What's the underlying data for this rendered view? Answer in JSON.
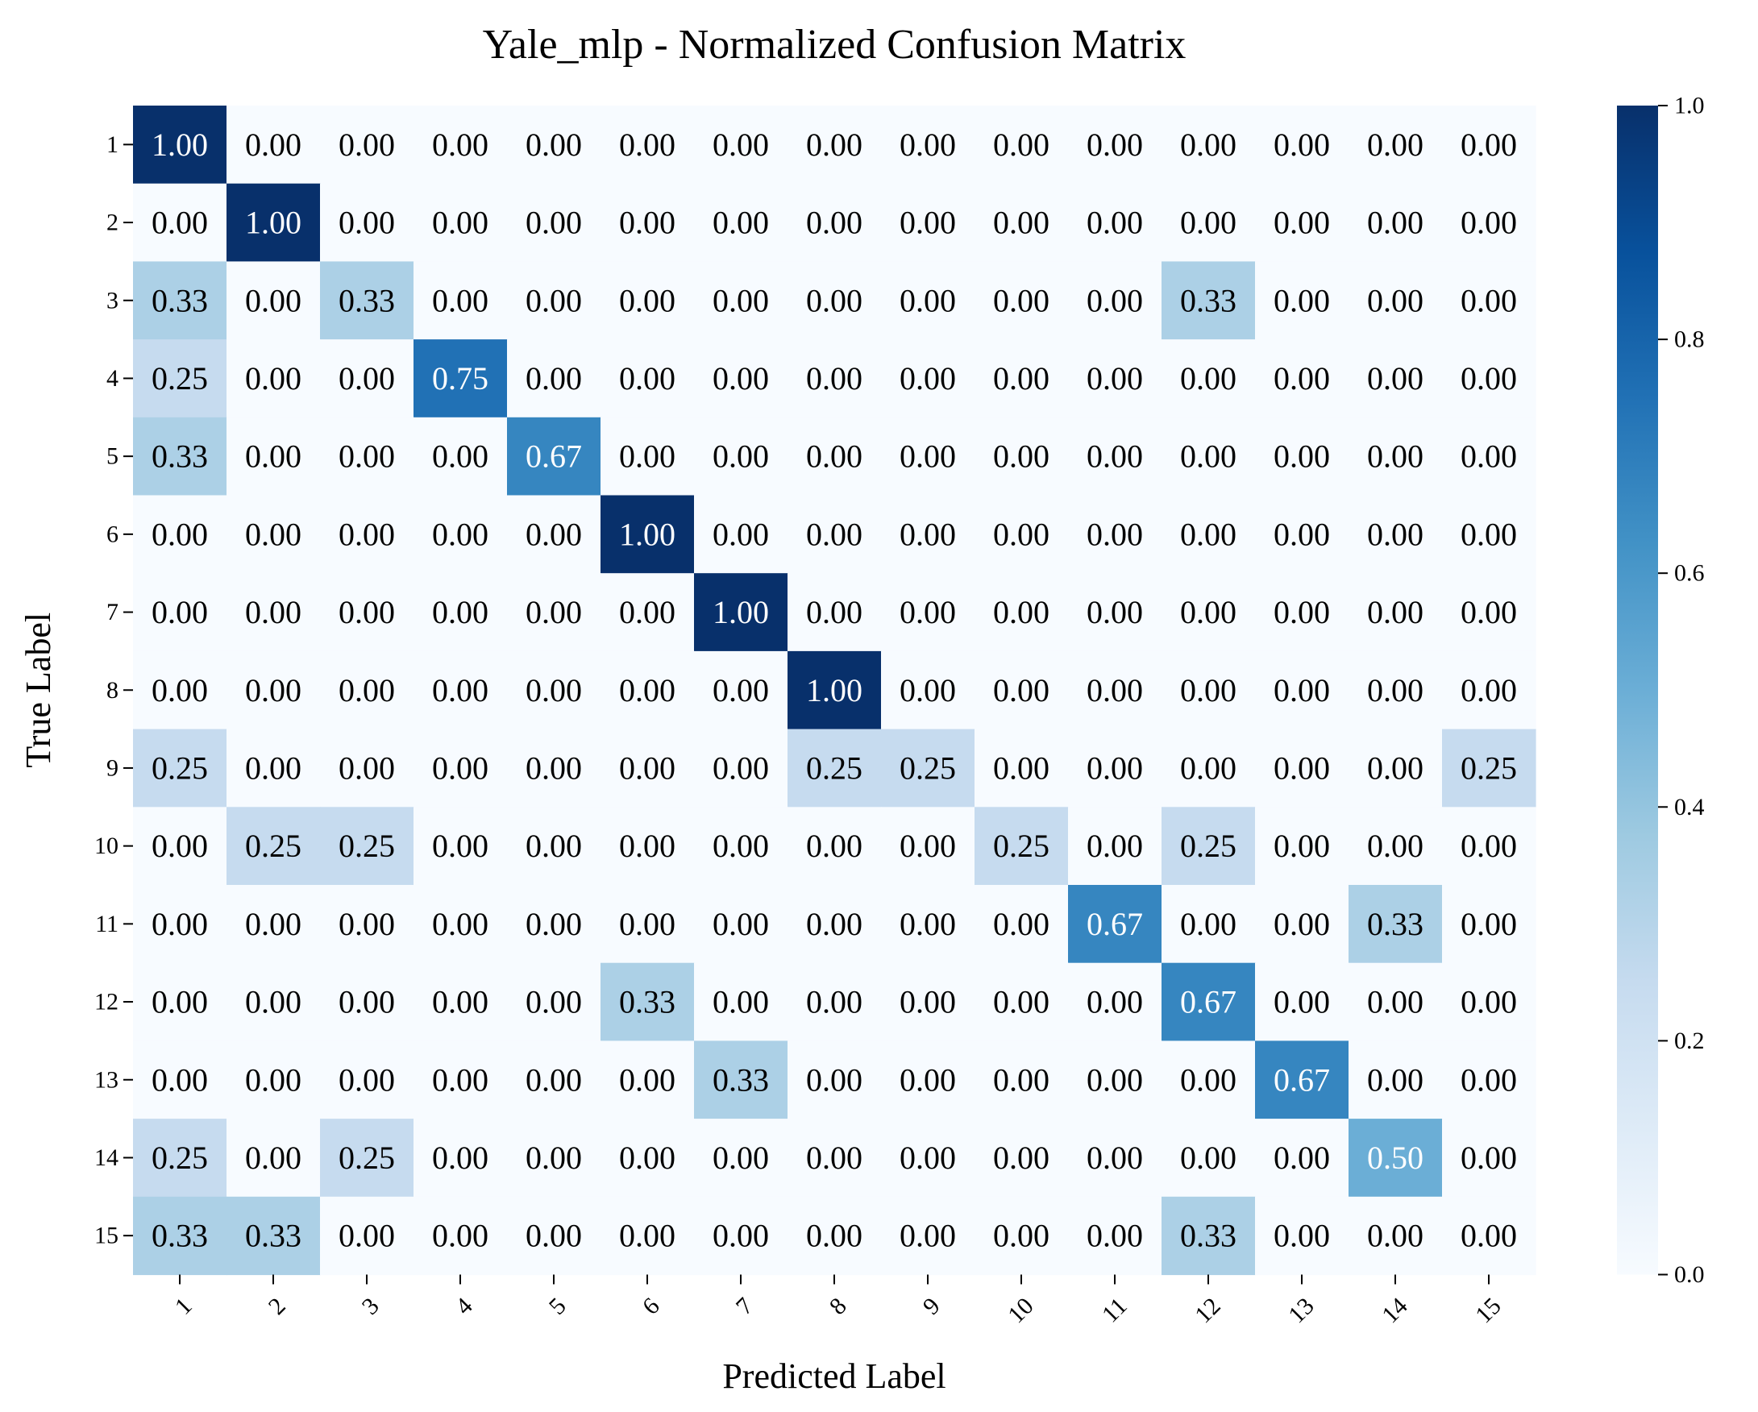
{
  "chart_data": {
    "type": "heatmap",
    "title": "Yale_mlp - Normalized Confusion Matrix",
    "xlabel": "Predicted Label",
    "ylabel": "True Label",
    "x_categories": [
      "1",
      "2",
      "3",
      "4",
      "5",
      "6",
      "7",
      "8",
      "9",
      "10",
      "11",
      "12",
      "13",
      "14",
      "15"
    ],
    "y_categories": [
      "1",
      "2",
      "3",
      "4",
      "5",
      "6",
      "7",
      "8",
      "9",
      "10",
      "11",
      "12",
      "13",
      "14",
      "15"
    ],
    "values": [
      [
        1.0,
        0.0,
        0.0,
        0.0,
        0.0,
        0.0,
        0.0,
        0.0,
        0.0,
        0.0,
        0.0,
        0.0,
        0.0,
        0.0,
        0.0
      ],
      [
        0.0,
        1.0,
        0.0,
        0.0,
        0.0,
        0.0,
        0.0,
        0.0,
        0.0,
        0.0,
        0.0,
        0.0,
        0.0,
        0.0,
        0.0
      ],
      [
        0.33,
        0.0,
        0.33,
        0.0,
        0.0,
        0.0,
        0.0,
        0.0,
        0.0,
        0.0,
        0.0,
        0.33,
        0.0,
        0.0,
        0.0
      ],
      [
        0.25,
        0.0,
        0.0,
        0.75,
        0.0,
        0.0,
        0.0,
        0.0,
        0.0,
        0.0,
        0.0,
        0.0,
        0.0,
        0.0,
        0.0
      ],
      [
        0.33,
        0.0,
        0.0,
        0.0,
        0.67,
        0.0,
        0.0,
        0.0,
        0.0,
        0.0,
        0.0,
        0.0,
        0.0,
        0.0,
        0.0
      ],
      [
        0.0,
        0.0,
        0.0,
        0.0,
        0.0,
        1.0,
        0.0,
        0.0,
        0.0,
        0.0,
        0.0,
        0.0,
        0.0,
        0.0,
        0.0
      ],
      [
        0.0,
        0.0,
        0.0,
        0.0,
        0.0,
        0.0,
        1.0,
        0.0,
        0.0,
        0.0,
        0.0,
        0.0,
        0.0,
        0.0,
        0.0
      ],
      [
        0.0,
        0.0,
        0.0,
        0.0,
        0.0,
        0.0,
        0.0,
        1.0,
        0.0,
        0.0,
        0.0,
        0.0,
        0.0,
        0.0,
        0.0
      ],
      [
        0.25,
        0.0,
        0.0,
        0.0,
        0.0,
        0.0,
        0.0,
        0.25,
        0.25,
        0.0,
        0.0,
        0.0,
        0.0,
        0.0,
        0.25
      ],
      [
        0.0,
        0.25,
        0.25,
        0.0,
        0.0,
        0.0,
        0.0,
        0.0,
        0.0,
        0.25,
        0.0,
        0.25,
        0.0,
        0.0,
        0.0
      ],
      [
        0.0,
        0.0,
        0.0,
        0.0,
        0.0,
        0.0,
        0.0,
        0.0,
        0.0,
        0.0,
        0.67,
        0.0,
        0.0,
        0.33,
        0.0
      ],
      [
        0.0,
        0.0,
        0.0,
        0.0,
        0.0,
        0.33,
        0.0,
        0.0,
        0.0,
        0.0,
        0.0,
        0.67,
        0.0,
        0.0,
        0.0
      ],
      [
        0.0,
        0.0,
        0.0,
        0.0,
        0.0,
        0.0,
        0.33,
        0.0,
        0.0,
        0.0,
        0.0,
        0.0,
        0.67,
        0.0,
        0.0
      ],
      [
        0.25,
        0.0,
        0.25,
        0.0,
        0.0,
        0.0,
        0.0,
        0.0,
        0.0,
        0.0,
        0.0,
        0.0,
        0.0,
        0.5,
        0.0
      ],
      [
        0.33,
        0.33,
        0.0,
        0.0,
        0.0,
        0.0,
        0.0,
        0.0,
        0.0,
        0.0,
        0.0,
        0.33,
        0.0,
        0.0,
        0.0
      ]
    ],
    "value_format": "0.00",
    "colormap": "Blues",
    "colorbar": {
      "range": [
        0.0,
        1.0
      ],
      "ticks": [
        0.0,
        0.2,
        0.4,
        0.6,
        0.8,
        1.0
      ],
      "tick_labels": [
        "0.0",
        "0.2",
        "0.4",
        "0.6",
        "0.8",
        "1.0"
      ],
      "placement": "right"
    },
    "x_tick_rotation_deg": 45,
    "colors": {
      "text_dark": "#000000",
      "text_light": "#ffffff",
      "cmap_stops": [
        "#f7fbff",
        "#deebf7",
        "#c6dbef",
        "#9ecae1",
        "#6baed6",
        "#4292c6",
        "#2171b5",
        "#08519c",
        "#08306b"
      ]
    }
  }
}
